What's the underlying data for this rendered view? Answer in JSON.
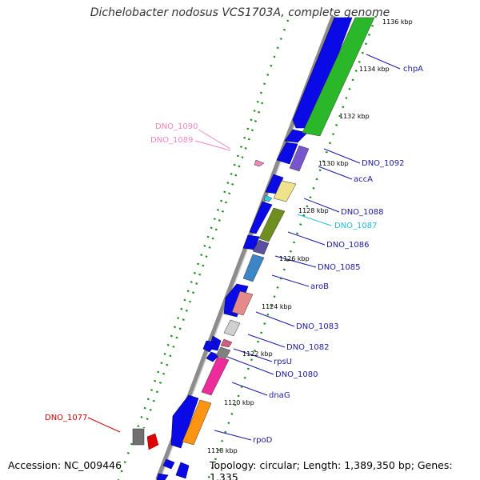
{
  "title": "Dichelobacter nodosus VCS1703A, complete genome",
  "footer": {
    "accession": "Accession: NC_009446",
    "summary": "Topology: circular; Length: 1,389,350 bp; Genes: 1,335"
  },
  "kbp_ticks": [
    "1136 kbp",
    "1134 kbp",
    "1132 kbp",
    "1130 kbp",
    "1128 kbp",
    "1126 kbp",
    "1124 kbp",
    "1122 kbp",
    "1120 kbp",
    "1118 kbp"
  ],
  "gene_labels": [
    "chpA",
    "DNO_1092",
    "accA",
    "DNO_1088",
    "DNO_1087",
    "DNO_1086",
    "DNO_1085",
    "aroB",
    "DNO_1083",
    "DNO_1082",
    "rpsU",
    "DNO_1080",
    "dnaG",
    "rpoD",
    "DNO_1090",
    "DNO_1089",
    "DNO_1077"
  ],
  "colors": {
    "backbone": "#8c8c8c",
    "gene_blue": "#0a0ae6",
    "gene_green": "#2ab82a",
    "gc_dots": "#1a8a1a",
    "label_blue": "#1a1aa0",
    "label_cyan": "#22bbdd",
    "label_pink": "#ee88bb",
    "label_red": "#cc0000"
  }
}
